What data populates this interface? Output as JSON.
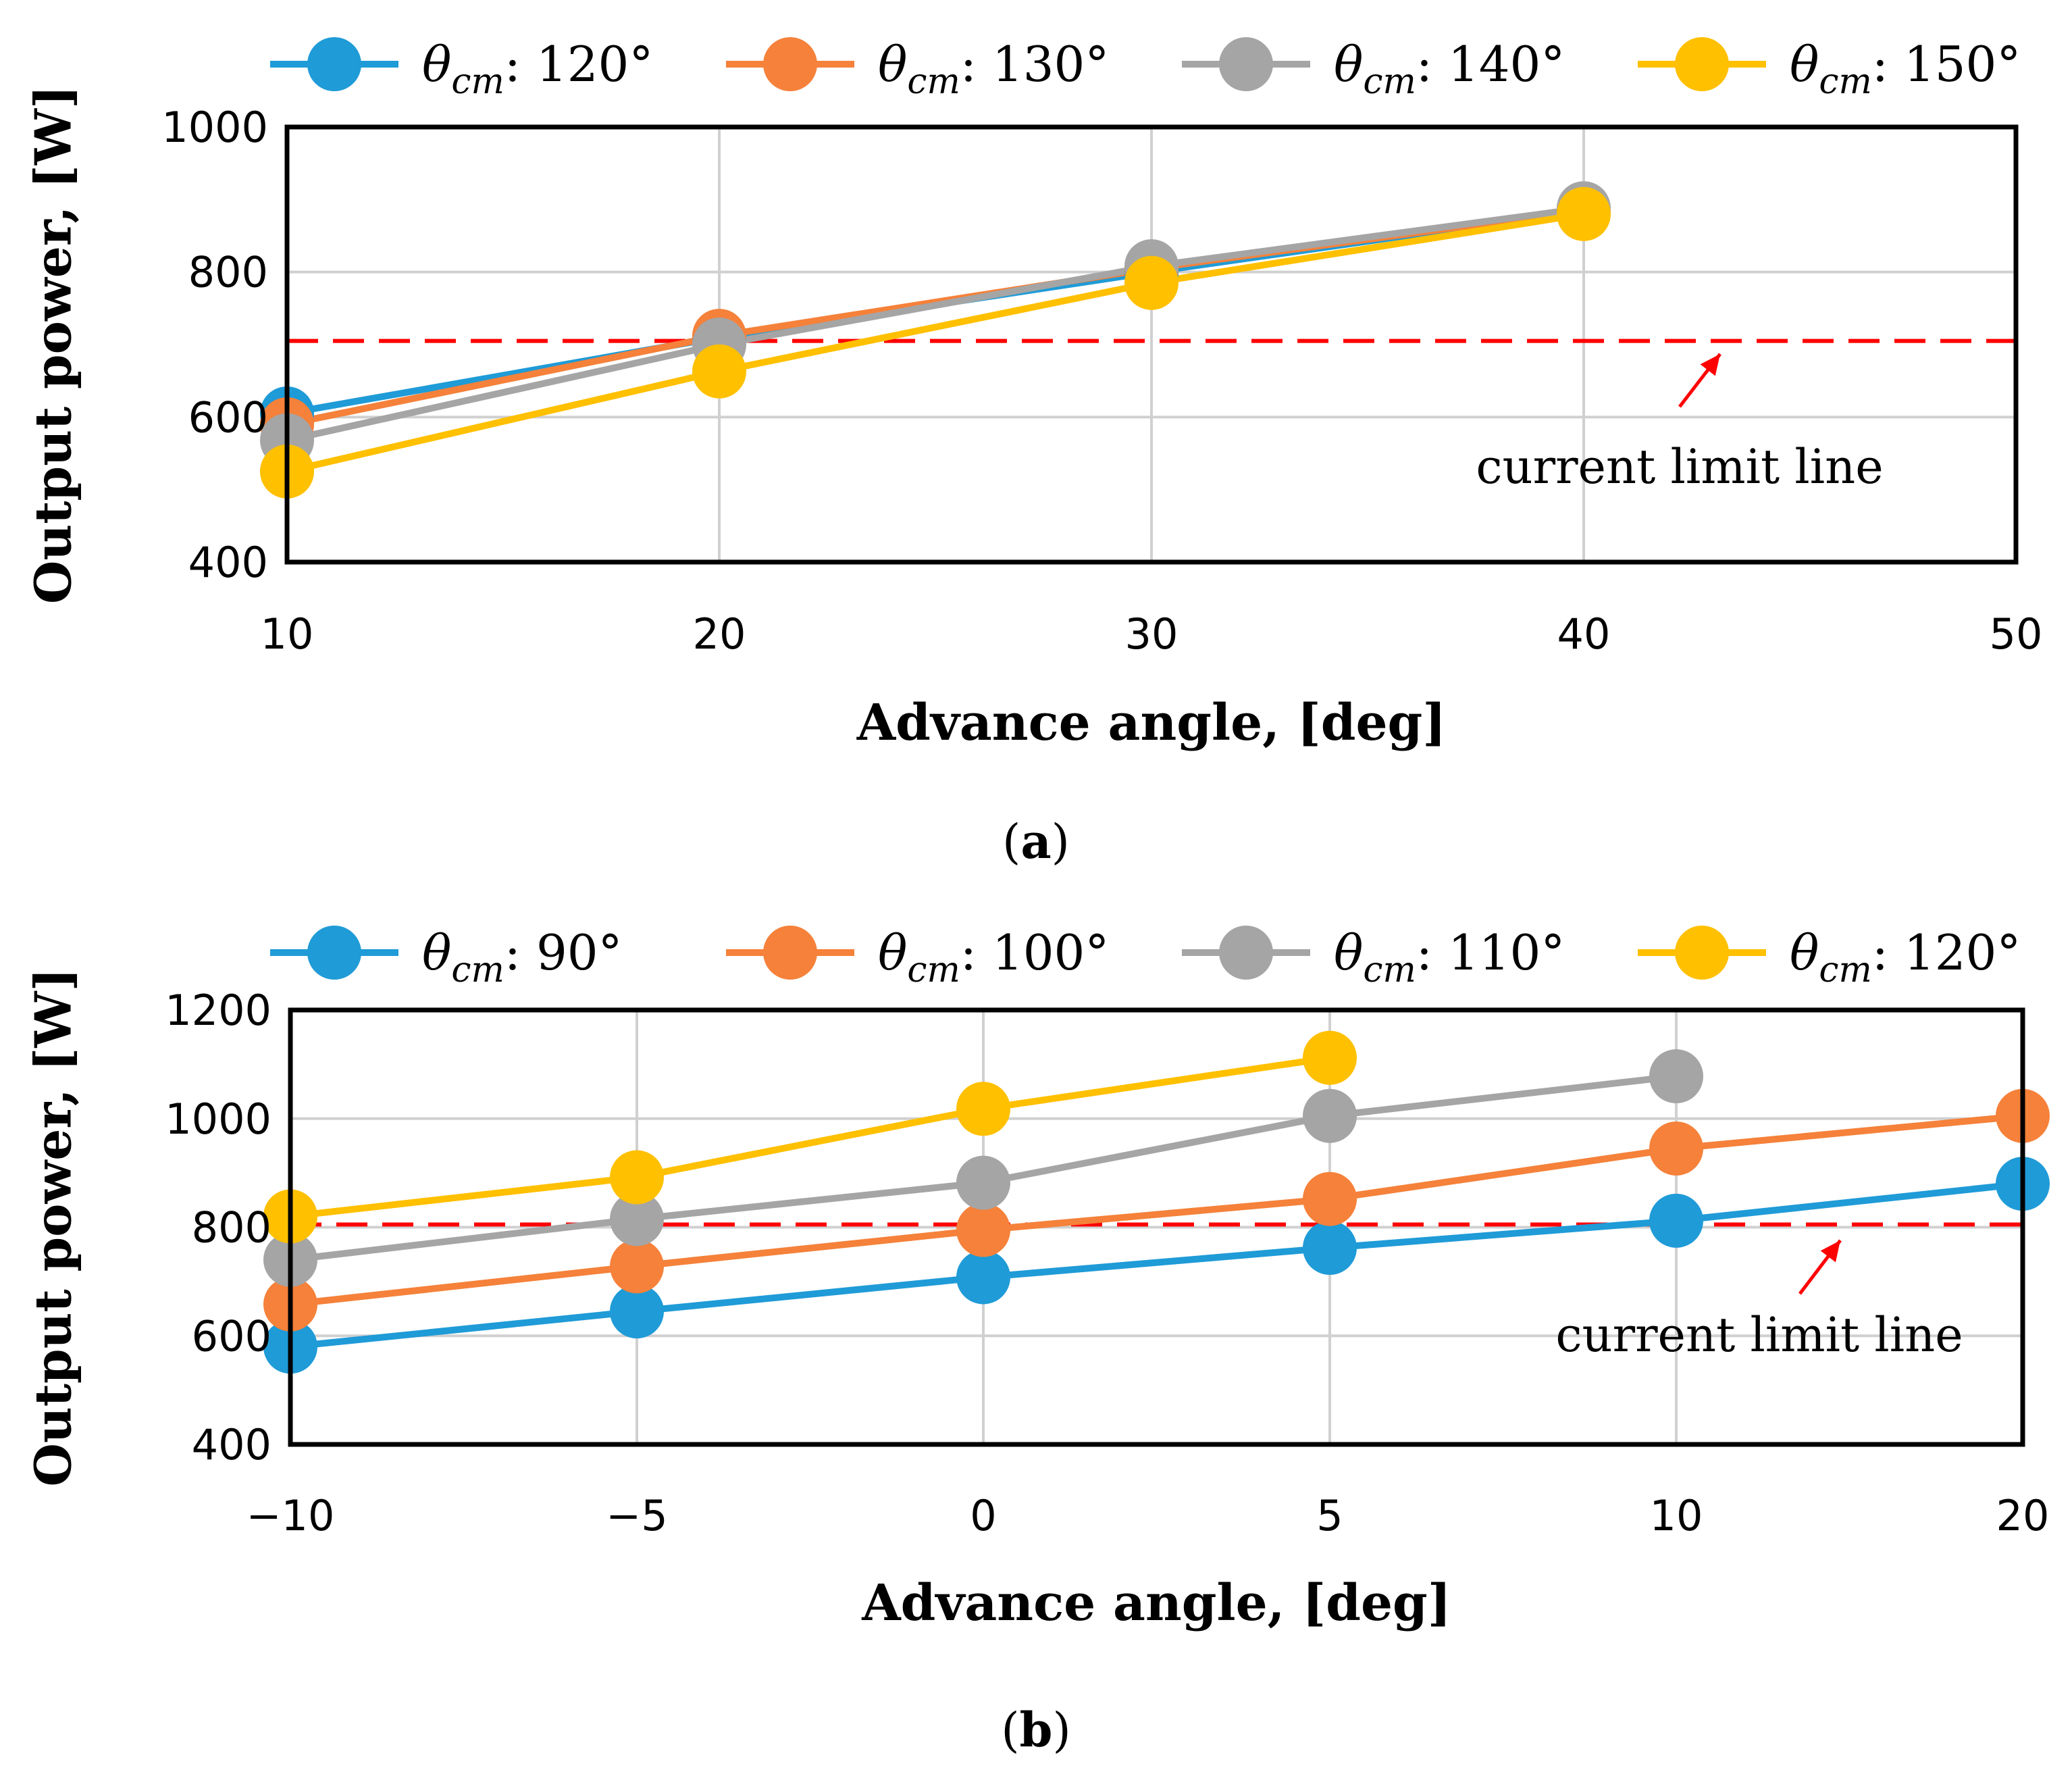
{
  "chart_data": [
    {
      "id": "a",
      "type": "line",
      "panel_label": {
        "open": "(",
        "letter": "a",
        "close": ")"
      },
      "xlabel": "Advance angle, [deg]",
      "ylabel": "Output power, [W]",
      "x_ticks": [
        "10",
        "20",
        "30",
        "40",
        "50"
      ],
      "y_ticks": [
        "400",
        "600",
        "800",
        "1000"
      ],
      "ylim": [
        400,
        1000
      ],
      "grid": true,
      "legend_position": "top",
      "series": [
        {
          "symbol": "θ",
          "subscript": "cm",
          "value_label": ": 120°",
          "color": "#1F9BD7",
          "values": [
            605,
            710,
            800,
            885
          ]
        },
        {
          "symbol": "θ",
          "subscript": "cm",
          "value_label": ": 130°",
          "color": "#F5813A",
          "values": [
            590,
            712,
            805,
            885
          ]
        },
        {
          "symbol": "θ",
          "subscript": "cm",
          "value_label": ": 140°",
          "color": "#A5A5A5",
          "values": [
            568,
            700,
            808,
            888
          ]
        },
        {
          "symbol": "θ",
          "subscript": "cm",
          "value_label": ": 150°",
          "color": "#FFC000",
          "values": [
            525,
            663,
            785,
            880
          ]
        }
      ],
      "reference_line": {
        "label": "current limit line",
        "value": 705,
        "color": "#FF0000"
      }
    },
    {
      "id": "b",
      "type": "line",
      "panel_label": {
        "open": "(",
        "letter": "b",
        "close": ")"
      },
      "xlabel": "Advance angle, [deg]",
      "ylabel": "Output power, [W]",
      "x_ticks": [
        "−10",
        "−5",
        "0",
        "5",
        "10",
        "20"
      ],
      "y_ticks": [
        "400",
        "600",
        "800",
        "1000",
        "1200"
      ],
      "ylim": [
        400,
        1200
      ],
      "grid": true,
      "legend_position": "top",
      "series": [
        {
          "symbol": "θ",
          "subscript": "cm",
          "value_label": ": 90°",
          "color": "#1F9BD7",
          "values": [
            580,
            645,
            708,
            762,
            812,
            880
          ]
        },
        {
          "symbol": "θ",
          "subscript": "cm",
          "value_label": ": 100°",
          "color": "#F5813A",
          "values": [
            658,
            728,
            795,
            852,
            945,
            1005
          ]
        },
        {
          "symbol": "θ",
          "subscript": "cm",
          "value_label": ": 110°",
          "color": "#A5A5A5",
          "values": [
            740,
            815,
            882,
            1005,
            1078
          ]
        },
        {
          "symbol": "θ",
          "subscript": "cm",
          "value_label": ": 120°",
          "color": "#FFC000",
          "values": [
            820,
            892,
            1018,
            1112
          ]
        }
      ],
      "reference_line": {
        "label": "current limit line",
        "value": 805,
        "color": "#FF0000"
      }
    }
  ]
}
